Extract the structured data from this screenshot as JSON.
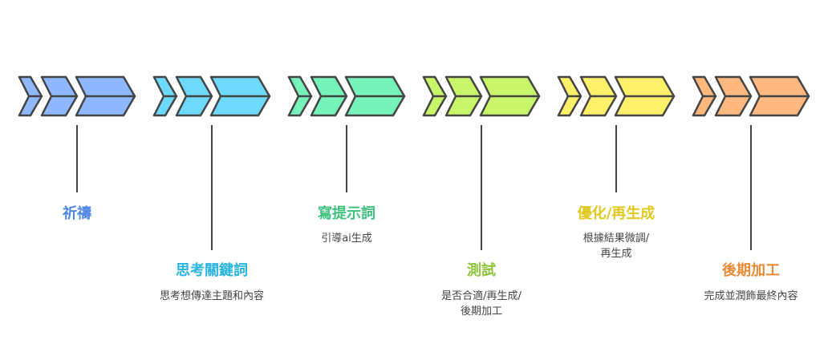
{
  "steps": [
    {
      "title": "祈禱",
      "desc": "",
      "fill": "#8fb8ff",
      "text_color": "#4f87e6"
    },
    {
      "title": "思考關鍵詞",
      "desc": "思考想傳達主題和內容",
      "fill": "#6dd9fb",
      "text_color": "#2bb5de"
    },
    {
      "title": "寫提示詞",
      "desc": "引導ai生成",
      "fill": "#76f2bb",
      "text_color": "#3fc27e"
    },
    {
      "title": "測試",
      "desc": "是否合適/再生成/\n後期加工",
      "fill": "#c9f56a",
      "text_color": "#8dc43a"
    },
    {
      "title": "優化/再生成",
      "desc": "根據結果微調/\n再生成",
      "fill": "#fff06a",
      "text_color": "#e0c821"
    },
    {
      "title": "後期加工",
      "desc": "完成並潤飾最終內容",
      "fill": "#ffb87d",
      "text_color": "#ea8a36"
    }
  ]
}
